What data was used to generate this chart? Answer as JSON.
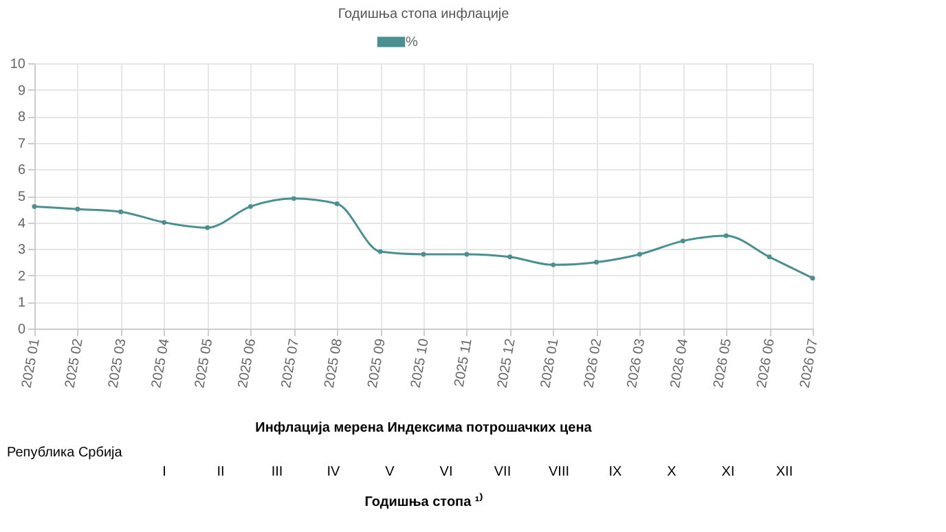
{
  "chart_data": {
    "type": "line",
    "title": "Годишња стопа инфлације",
    "categories": [
      "2025 01",
      "2025 02",
      "2025 03",
      "2025 04",
      "2025 05",
      "2025 06",
      "2025 07",
      "2025 08",
      "2025 09",
      "2025 10",
      "2025 11",
      "2025 12",
      "2026 01",
      "2026 02",
      "2026 03",
      "2026 04",
      "2026 05",
      "2026 06",
      "2026 07"
    ],
    "series": [
      {
        "name": "%",
        "color": "#4a9090",
        "values": [
          4.6,
          4.5,
          4.4,
          4.0,
          3.8,
          4.6,
          4.9,
          4.7,
          2.9,
          2.8,
          2.8,
          2.7,
          2.4,
          2.5,
          2.8,
          3.3,
          3.5,
          2.7,
          1.9
        ]
      }
    ],
    "ylim": [
      0,
      10
    ],
    "yticks": [
      0,
      1,
      2,
      3,
      4,
      5,
      6,
      7,
      8,
      9,
      10
    ],
    "grid": true,
    "legend": "top",
    "marker": "circle",
    "line_style": "solid",
    "annotations": [
      "Инфлација мерена Индексима потрошачких цена",
      "Република Србија",
      "I",
      "II",
      "III",
      "IV",
      "V",
      "VI",
      "VII",
      "VIII",
      "IX",
      "X",
      "XI",
      "XII",
      "Годишња стопа ¹⁾"
    ]
  }
}
